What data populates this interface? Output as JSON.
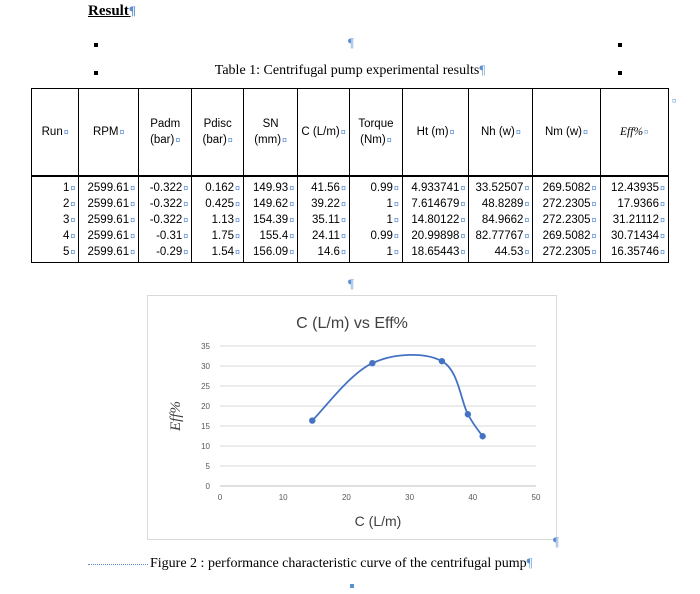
{
  "document": {
    "heading": "Result",
    "table_caption": "Table 1: Centrifugal pump experimental results",
    "figure_caption": "Figure 2 : performance characteristic curve of the centrifugal pump",
    "pilcrow": "¶",
    "cell_mark": "¤"
  },
  "table": {
    "columns": [
      "Run",
      "RPM",
      "Padm\n(bar)",
      "Pdisc\n(bar)",
      "SN\n(mm)",
      "C (L/m)",
      "Torque\n(Nm)",
      "Ht (m)",
      "Nh (w)",
      "Nm (w)",
      "Eff%"
    ],
    "rows": [
      [
        "1",
        "2599.61",
        "-0.322",
        "0.162",
        "149.93",
        "41.56",
        "0.99",
        "4.933741",
        "33.52507",
        "269.5082",
        "12.43935"
      ],
      [
        "2",
        "2599.61",
        "-0.322",
        "0.425",
        "149.62",
        "39.22",
        "1",
        "7.614679",
        "48.8289",
        "272.2305",
        "17.9366"
      ],
      [
        "3",
        "2599.61",
        "-0.322",
        "1.13",
        "154.39",
        "35.11",
        "1",
        "14.80122",
        "84.9662",
        "272.2305",
        "31.21112"
      ],
      [
        "4",
        "2599.61",
        "-0.31",
        "1.75",
        "155.4",
        "24.11",
        "0.99",
        "20.99898",
        "82.77767",
        "269.5082",
        "30.71434"
      ],
      [
        "5",
        "2599.61",
        "-0.29",
        "1.54",
        "156.09",
        "14.6",
        "1",
        "18.65443",
        "44.53",
        "272.2305",
        "16.35746"
      ]
    ]
  },
  "chart_data": {
    "type": "scatter",
    "title": "C (L/m) vs Eff%",
    "xlabel": "C (L/m)",
    "ylabel": "Eff%",
    "xlim": [
      0,
      50
    ],
    "ylim": [
      0,
      35
    ],
    "xticks": [
      0,
      10,
      20,
      30,
      40,
      50
    ],
    "yticks": [
      0,
      5,
      10,
      15,
      20,
      25,
      30,
      35
    ],
    "grid": "horizontal",
    "smooth_line": true,
    "series": [
      {
        "color": "#4472c4",
        "x": [
          14.6,
          24.11,
          35.11,
          39.22,
          41.56
        ],
        "y": [
          16.35746,
          30.71434,
          31.21112,
          17.9366,
          12.43935
        ]
      }
    ]
  }
}
